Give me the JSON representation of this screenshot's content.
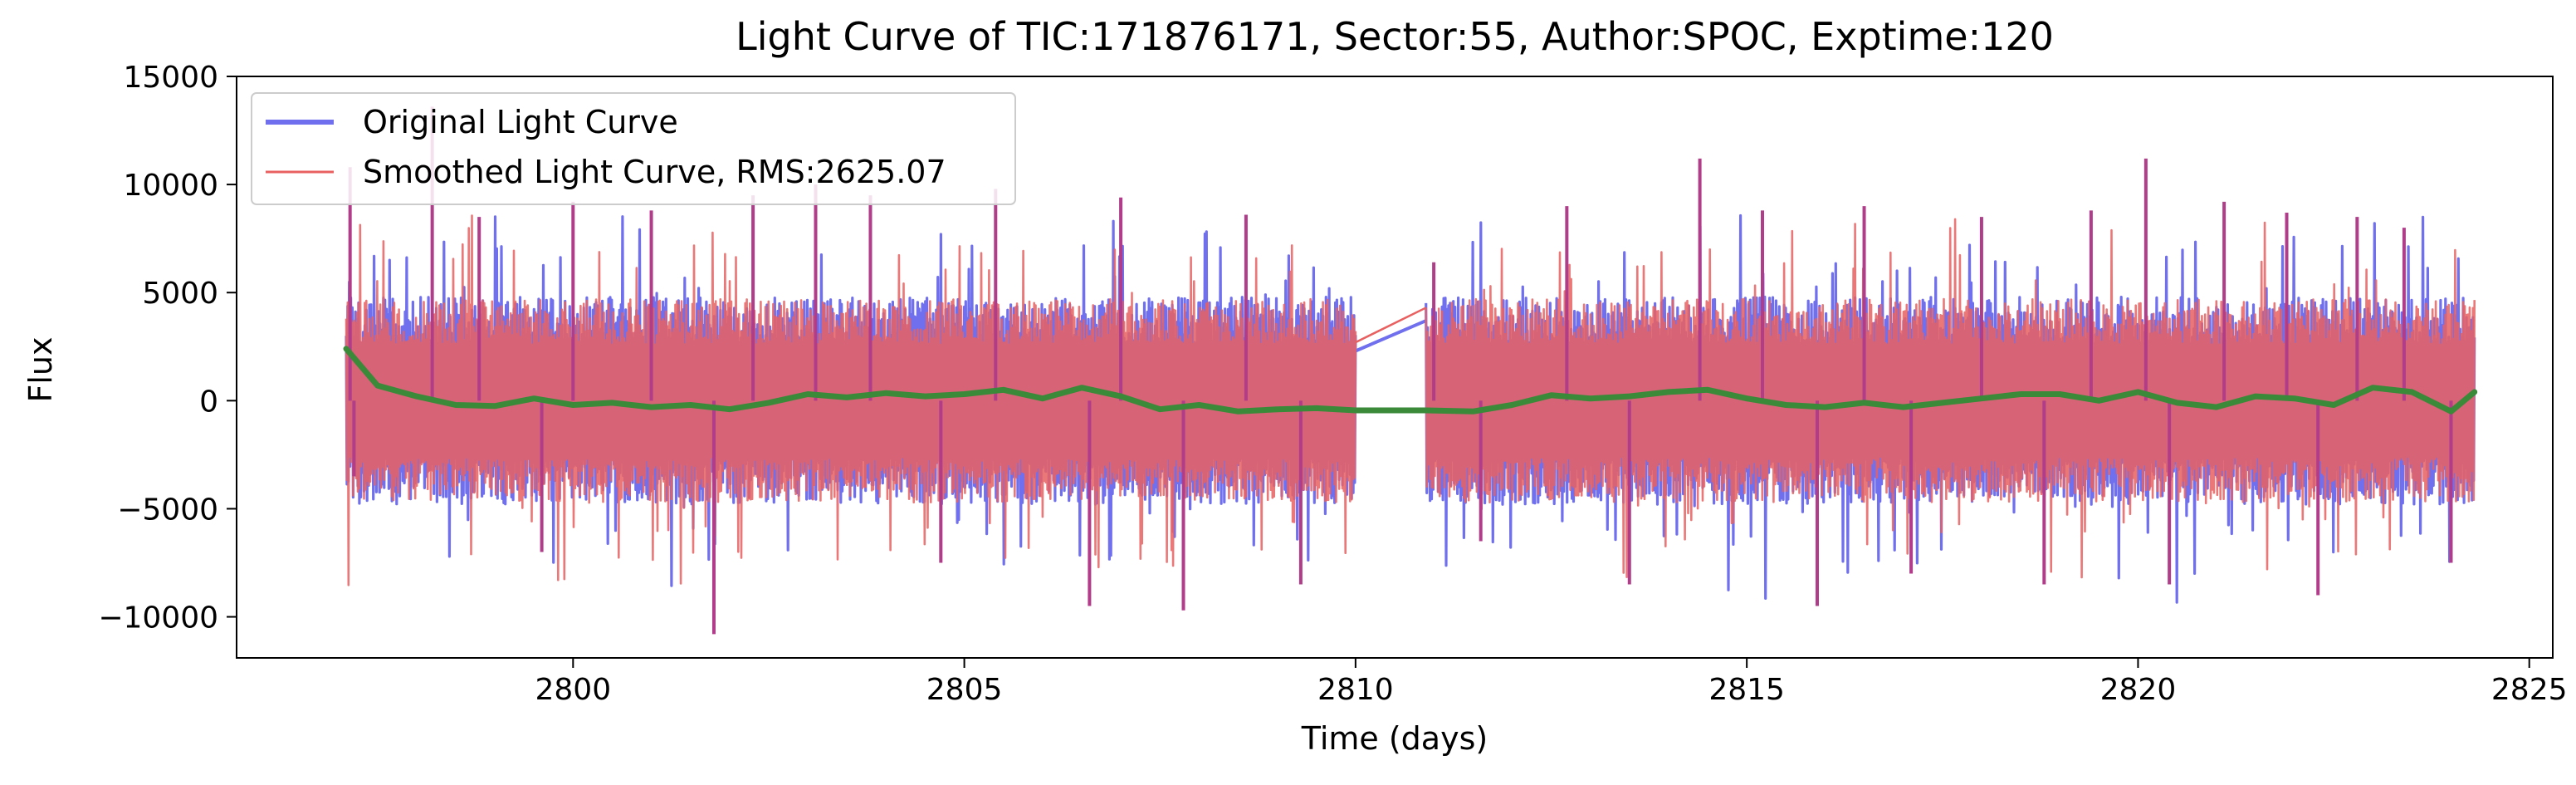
{
  "chart_data": {
    "type": "line",
    "title": "Light Curve of TIC:171876171, Sector:55, Author:SPOC, Exptime:120",
    "xlabel": "Time (days)",
    "ylabel": "Flux",
    "xlim": [
      2795.7,
      2825.3
    ],
    "ylim": [
      -11900,
      15000
    ],
    "x_ticks": [
      2800,
      2805,
      2810,
      2815,
      2820,
      2825
    ],
    "y_ticks": [
      -10000,
      -5000,
      0,
      5000,
      10000,
      15000
    ],
    "x_tick_labels": [
      "2800",
      "2805",
      "2810",
      "2815",
      "2820",
      "2825"
    ],
    "y_tick_labels": [
      "−10000",
      "−5000",
      "0",
      "5000",
      "10000",
      "15000"
    ],
    "grid": false,
    "legend_position": "top-left",
    "time_range": [
      2797.1,
      2824.3
    ],
    "data_gap": [
      2810.0,
      2810.9
    ],
    "series": [
      {
        "name": "Original Light Curve",
        "color": "#7070ee",
        "style": "noisy-band",
        "typical_band": [
          -4800,
          4800
        ],
        "max": 13600,
        "min": -10800
      },
      {
        "name": "Smoothed Light Curve, RMS:2625.07",
        "color": "#e86060",
        "style": "noisy-band",
        "typical_band": [
          -4800,
          4800
        ]
      },
      {
        "color": "#3a8a3a",
        "style": "trend",
        "x": [
          2797.1,
          2797.5,
          2798.0,
          2798.5,
          2799.0,
          2799.5,
          2800.0,
          2800.5,
          2801.0,
          2801.5,
          2802.0,
          2802.5,
          2803.0,
          2803.5,
          2804.0,
          2804.5,
          2805.0,
          2805.5,
          2806.0,
          2806.5,
          2807.0,
          2807.5,
          2808.0,
          2808.5,
          2809.0,
          2809.5,
          2810.0,
          2810.9,
          2811.5,
          2812.0,
          2812.5,
          2813.0,
          2813.5,
          2814.0,
          2814.5,
          2815.0,
          2815.5,
          2816.0,
          2816.5,
          2817.0,
          2817.5,
          2818.0,
          2818.5,
          2819.0,
          2819.5,
          2820.0,
          2820.5,
          2821.0,
          2821.5,
          2822.0,
          2822.5,
          2823.0,
          2823.5,
          2824.0,
          2824.3
        ],
        "y": [
          2400,
          700,
          200,
          -200,
          -250,
          100,
          -200,
          -100,
          -300,
          -200,
          -400,
          -100,
          300,
          150,
          350,
          200,
          300,
          500,
          100,
          600,
          200,
          -400,
          -200,
          -500,
          -400,
          -350,
          -450,
          -450,
          -500,
          -200,
          250,
          100,
          200,
          400,
          500,
          100,
          -200,
          -300,
          -100,
          -300,
          -100,
          100,
          300,
          300,
          0,
          400,
          -100,
          -300,
          200,
          100,
          -200,
          600,
          400,
          -500,
          400
        ]
      }
    ]
  }
}
